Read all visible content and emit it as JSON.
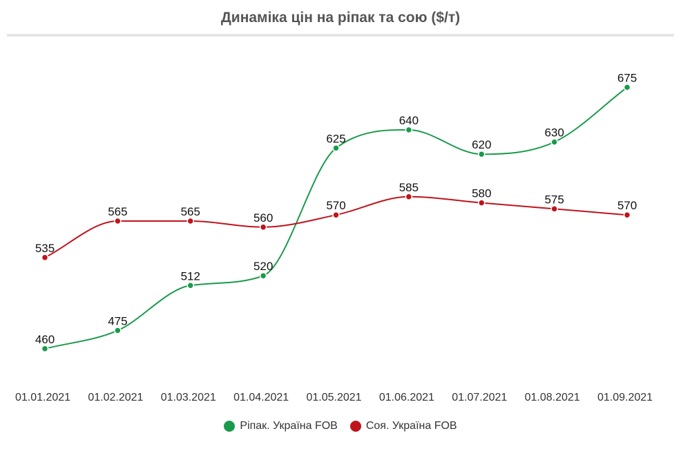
{
  "chart_data": {
    "type": "line",
    "title": "Динаміка цін на ріпак та сою ($/т)",
    "categories": [
      "01.01.2021",
      "01.02.2021",
      "01.03.2021",
      "01.04.2021",
      "01.05.2021",
      "01.06.2021",
      "01.07.2021",
      "01.08.2021",
      "01.09.2021"
    ],
    "series": [
      {
        "name": "Ріпак. Україна FOB",
        "color": "#1a9a4b",
        "values": [
          460,
          475,
          512,
          520,
          625,
          640,
          620,
          630,
          675
        ]
      },
      {
        "name": "Соя. Україна FOB",
        "color": "#c0141c",
        "values": [
          535,
          565,
          565,
          560,
          570,
          585,
          580,
          575,
          570
        ]
      }
    ],
    "ylim": [
      440,
      690
    ],
    "grid": false,
    "legend": "bottom"
  }
}
